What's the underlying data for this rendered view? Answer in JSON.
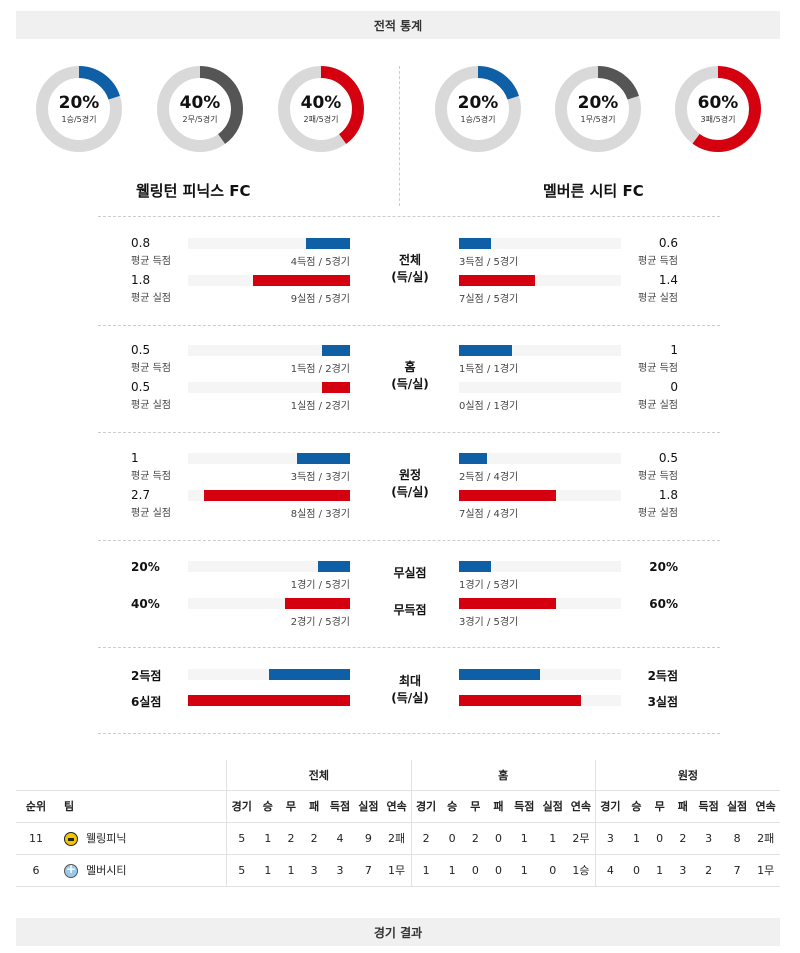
{
  "sections": {
    "stats_title": "전적 통계",
    "results_title": "경기 결과"
  },
  "home_team": {
    "name": "웰링턴 피닉스 FC",
    "short": "웰링피닉",
    "donuts": [
      {
        "pct": "20%",
        "sub": "1승/5경기",
        "value": 0.2,
        "color": "#0f5fa6"
      },
      {
        "pct": "40%",
        "sub": "2무/5경기",
        "value": 0.4,
        "color": "#555555"
      },
      {
        "pct": "40%",
        "sub": "2패/5경기",
        "value": 0.4,
        "color": "#d40010"
      }
    ]
  },
  "away_team": {
    "name": "멜버른 시티 FC",
    "short": "멜버시티",
    "donuts": [
      {
        "pct": "20%",
        "sub": "1승/5경기",
        "value": 0.2,
        "color": "#0f5fa6"
      },
      {
        "pct": "20%",
        "sub": "1무/5경기",
        "value": 0.2,
        "color": "#555555"
      },
      {
        "pct": "60%",
        "sub": "3패/5경기",
        "value": 0.6,
        "color": "#d40010"
      }
    ]
  },
  "stat_groups": [
    {
      "label1": "전체",
      "label2": "(득/실)",
      "left": [
        {
          "value": "0.8",
          "label": "평균 득점",
          "caption": "4득점 / 5경기",
          "fraction": 0.27,
          "color": "blue"
        },
        {
          "value": "1.8",
          "label": "평균 실점",
          "caption": "9실점 / 5경기",
          "fraction": 0.6,
          "color": "red"
        }
      ],
      "right": [
        {
          "value": "0.6",
          "label": "평균 득점",
          "caption": "3득점 / 5경기",
          "fraction": 0.2,
          "color": "blue"
        },
        {
          "value": "1.4",
          "label": "평균 실점",
          "caption": "7실점 / 5경기",
          "fraction": 0.47,
          "color": "red"
        }
      ]
    },
    {
      "label1": "홈",
      "label2": "(득/실)",
      "left": [
        {
          "value": "0.5",
          "label": "평균 득점",
          "caption": "1득점 / 2경기",
          "fraction": 0.17,
          "color": "blue"
        },
        {
          "value": "0.5",
          "label": "평균 실점",
          "caption": "1실점 / 2경기",
          "fraction": 0.17,
          "color": "red"
        }
      ],
      "right": [
        {
          "value": "1",
          "label": "평균 득점",
          "caption": "1득점 / 1경기",
          "fraction": 0.33,
          "color": "blue"
        },
        {
          "value": "0",
          "label": "평균 실점",
          "caption": "0실점 / 1경기",
          "fraction": 0,
          "color": "red"
        }
      ]
    },
    {
      "label1": "원정",
      "label2": "(득/실)",
      "left": [
        {
          "value": "1",
          "label": "평균 득점",
          "caption": "3득점 / 3경기",
          "fraction": 0.33,
          "color": "blue"
        },
        {
          "value": "2.7",
          "label": "평균 실점",
          "caption": "8실점 / 3경기",
          "fraction": 0.9,
          "color": "red"
        }
      ],
      "right": [
        {
          "value": "0.5",
          "label": "평균 득점",
          "caption": "2득점 / 4경기",
          "fraction": 0.17,
          "color": "blue"
        },
        {
          "value": "1.8",
          "label": "평균 실점",
          "caption": "7실점 / 4경기",
          "fraction": 0.6,
          "color": "red"
        }
      ]
    }
  ],
  "zero_group": {
    "rows": [
      {
        "center": "무실점",
        "left_value": "20%",
        "left_caption": "1경기 / 5경기",
        "left_fraction": 0.2,
        "right_value": "20%",
        "right_caption": "1경기 / 5경기",
        "right_fraction": 0.2,
        "color": "blue"
      },
      {
        "center": "무득점",
        "left_value": "40%",
        "left_caption": "2경기 / 5경기",
        "left_fraction": 0.4,
        "right_value": "60%",
        "right_caption": "3경기 / 5경기",
        "right_fraction": 0.6,
        "color": "red"
      }
    ]
  },
  "max_group": {
    "label1": "최대",
    "label2": "(득/실)",
    "rows": [
      {
        "left_value": "2득점",
        "left_fraction": 0.5,
        "right_value": "2득점",
        "right_fraction": 0.5,
        "color": "blue"
      },
      {
        "left_value": "6실점",
        "left_fraction": 1.0,
        "right_value": "3실점",
        "right_fraction": 0.75,
        "color": "red"
      }
    ]
  },
  "standings": {
    "groups": [
      "전체",
      "홈",
      "원정"
    ],
    "headers": {
      "rank": "순위",
      "team": "팀",
      "cols": [
        "경기",
        "승",
        "무",
        "패",
        "득점",
        "실점",
        "연속"
      ]
    },
    "rows": [
      {
        "rank": "11",
        "team": "웰링피닉",
        "badge": "wel",
        "total": [
          "5",
          "1",
          "2",
          "2",
          "4",
          "9",
          "2패"
        ],
        "home": [
          "2",
          "0",
          "2",
          "0",
          "1",
          "1",
          "2무"
        ],
        "away": [
          "3",
          "1",
          "0",
          "2",
          "3",
          "8",
          "2패"
        ]
      },
      {
        "rank": "6",
        "team": "멜버시티",
        "badge": "mel",
        "total": [
          "5",
          "1",
          "1",
          "3",
          "3",
          "7",
          "1무"
        ],
        "home": [
          "1",
          "1",
          "0",
          "0",
          "1",
          "0",
          "1승"
        ],
        "away": [
          "4",
          "0",
          "1",
          "3",
          "2",
          "7",
          "1무"
        ]
      }
    ]
  }
}
